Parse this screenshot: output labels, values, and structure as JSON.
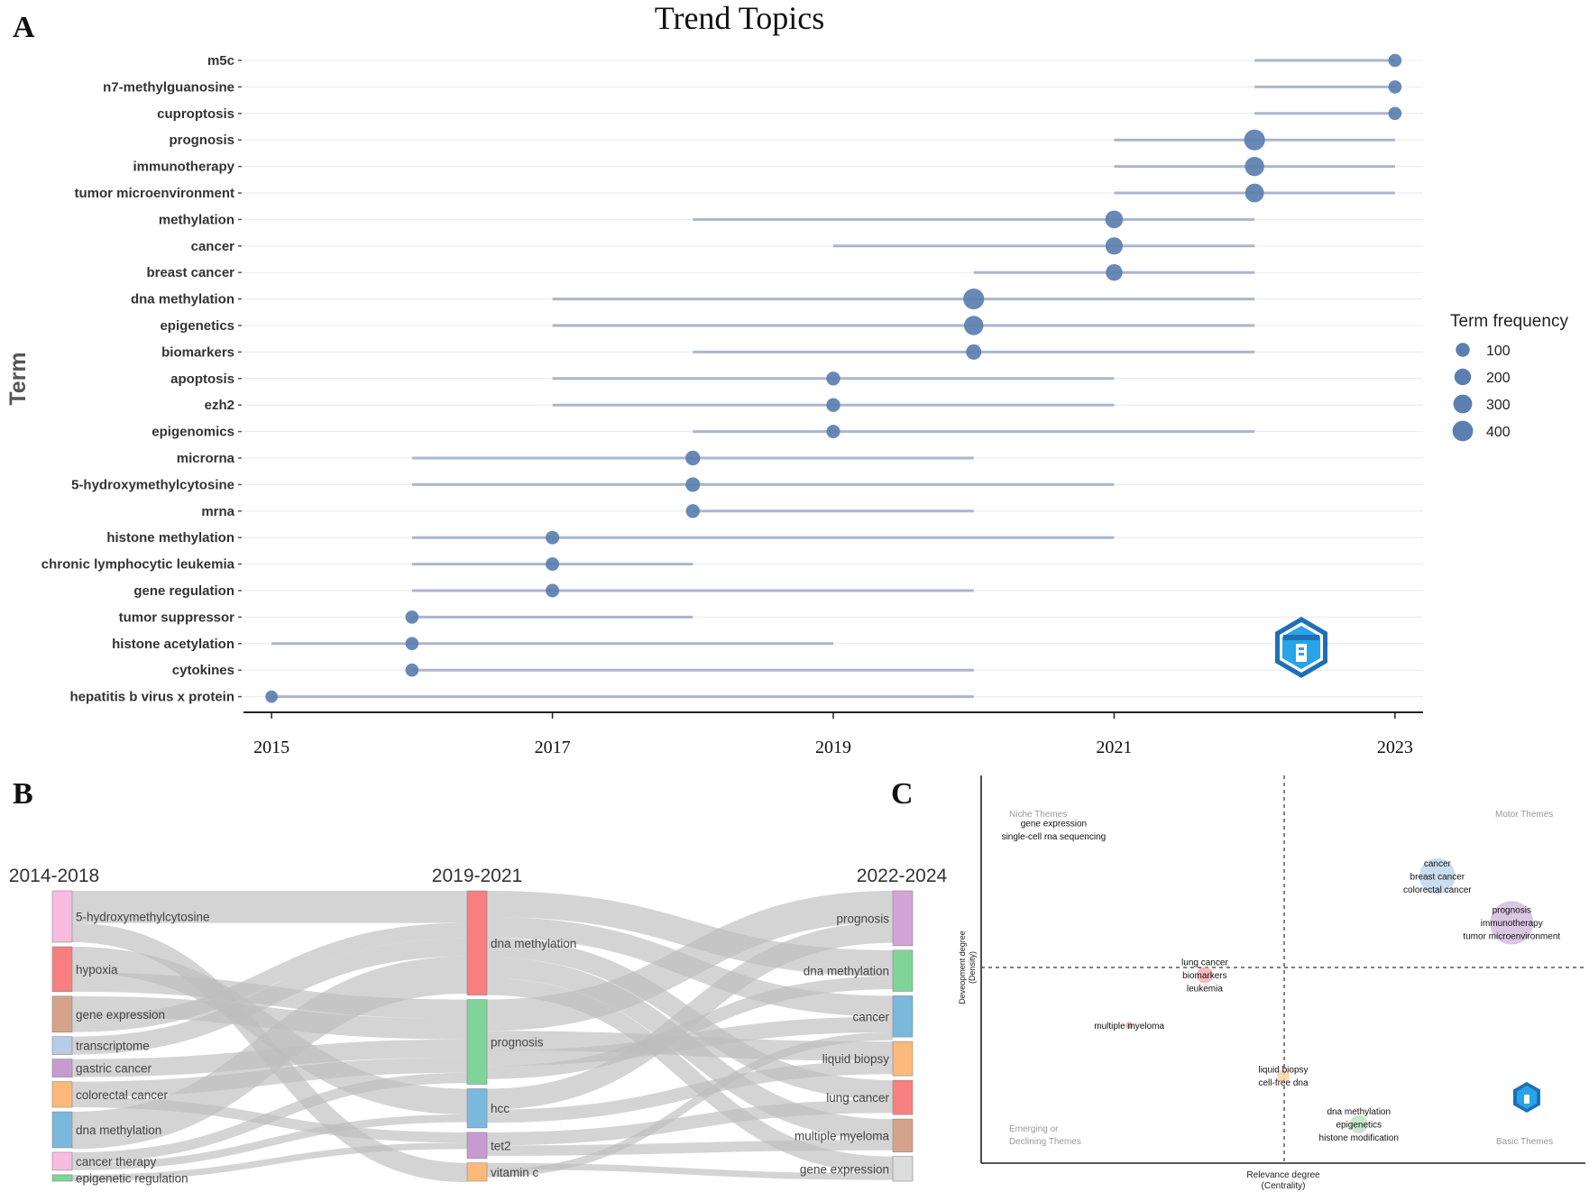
{
  "panels": {
    "a": "A",
    "b": "B",
    "c": "C"
  },
  "colors": {
    "dot": "#5b7fb0",
    "segment": "#aab6d0",
    "grid": "#e8e8e8",
    "flow": "#bdbdbd"
  },
  "chart_data": [
    {
      "type": "scatter",
      "title": "Trend Topics",
      "xlabel": "",
      "ylabel": "Term",
      "xlim": [
        2014.8,
        2023.2
      ],
      "xticks": [
        2015,
        2017,
        2019,
        2021,
        2023
      ],
      "legend": {
        "title": "Term frequency",
        "values": [
          100,
          200,
          300,
          400
        ]
      },
      "terms": [
        {
          "term": "m5c",
          "start": 2022,
          "end": 2023,
          "year": 2023,
          "freq": 80
        },
        {
          "term": "n7-methylguanosine",
          "start": 2022,
          "end": 2023,
          "year": 2023,
          "freq": 80
        },
        {
          "term": "cuproptosis",
          "start": 2022,
          "end": 2023,
          "year": 2023,
          "freq": 80
        },
        {
          "term": "prognosis",
          "start": 2021,
          "end": 2023,
          "year": 2022,
          "freq": 420
        },
        {
          "term": "immunotherapy",
          "start": 2021,
          "end": 2023,
          "year": 2022,
          "freq": 330
        },
        {
          "term": "tumor microenvironment",
          "start": 2021,
          "end": 2023,
          "year": 2022,
          "freq": 300
        },
        {
          "term": "methylation",
          "start": 2018,
          "end": 2022,
          "year": 2021,
          "freq": 250
        },
        {
          "term": "cancer",
          "start": 2019,
          "end": 2022,
          "year": 2021,
          "freq": 230
        },
        {
          "term": "breast cancer",
          "start": 2020,
          "end": 2022,
          "year": 2021,
          "freq": 200
        },
        {
          "term": "dna methylation",
          "start": 2017,
          "end": 2022,
          "year": 2020,
          "freq": 420
        },
        {
          "term": "epigenetics",
          "start": 2017,
          "end": 2022,
          "year": 2020,
          "freq": 330
        },
        {
          "term": "biomarkers",
          "start": 2018,
          "end": 2022,
          "year": 2020,
          "freq": 150
        },
        {
          "term": "apoptosis",
          "start": 2017,
          "end": 2021,
          "year": 2019,
          "freq": 100
        },
        {
          "term": "ezh2",
          "start": 2017,
          "end": 2021,
          "year": 2019,
          "freq": 100
        },
        {
          "term": "epigenomics",
          "start": 2018,
          "end": 2022,
          "year": 2019,
          "freq": 90
        },
        {
          "term": "microrna",
          "start": 2016,
          "end": 2020,
          "year": 2018,
          "freq": 130
        },
        {
          "term": "5-hydroxymethylcytosine",
          "start": 2016,
          "end": 2021,
          "year": 2018,
          "freq": 120
        },
        {
          "term": "mrna",
          "start": 2018,
          "end": 2020,
          "year": 2018,
          "freq": 100
        },
        {
          "term": "histone methylation",
          "start": 2016,
          "end": 2021,
          "year": 2017,
          "freq": 90
        },
        {
          "term": "chronic lymphocytic leukemia",
          "start": 2016,
          "end": 2018,
          "year": 2017,
          "freq": 90
        },
        {
          "term": "gene regulation",
          "start": 2016,
          "end": 2020,
          "year": 2017,
          "freq": 90
        },
        {
          "term": "tumor suppressor",
          "start": 2016,
          "end": 2018,
          "year": 2016,
          "freq": 80
        },
        {
          "term": "histone acetylation",
          "start": 2015,
          "end": 2019,
          "year": 2016,
          "freq": 80
        },
        {
          "term": "cytokines",
          "start": 2016,
          "end": 2020,
          "year": 2016,
          "freq": 80
        },
        {
          "term": "hepatitis b virus x protein",
          "start": 2015,
          "end": 2020,
          "year": 2015,
          "freq": 60
        }
      ]
    },
    {
      "type": "sankey",
      "title": "",
      "periods": [
        "2014-2018",
        "2019-2021",
        "2022-2024"
      ],
      "columns": [
        [
          {
            "label": "5-hydroxymethylcytosine",
            "weight": 4,
            "color": "#f7bce0"
          },
          {
            "label": "hypoxia",
            "weight": 3.5,
            "color": "#f77f7f"
          },
          {
            "label": "gene expression",
            "weight": 2.8,
            "color": "#d4a38a"
          },
          {
            "label": "transcriptome",
            "weight": 1.4,
            "color": "#b9cbe6"
          },
          {
            "label": "gastric cancer",
            "weight": 1.4,
            "color": "#c79bd0"
          },
          {
            "label": "colorectal cancer",
            "weight": 2.0,
            "color": "#fdb97a"
          },
          {
            "label": "dna methylation",
            "weight": 2.8,
            "color": "#7ab8dc"
          },
          {
            "label": "cancer therapy",
            "weight": 1.4,
            "color": "#f7bce0"
          },
          {
            "label": "epigenetic regulation",
            "weight": 0.5,
            "color": "#7fd49a"
          }
        ],
        [
          {
            "label": "dna methylation",
            "weight": 8,
            "color": "#f77f7f"
          },
          {
            "label": "prognosis",
            "weight": 6.5,
            "color": "#7fd49a"
          },
          {
            "label": "hcc",
            "weight": 3,
            "color": "#7ab8dc"
          },
          {
            "label": "tet2",
            "weight": 2,
            "color": "#c79bd0"
          },
          {
            "label": "vitamin c",
            "weight": 1.4,
            "color": "#fdb97a"
          }
        ],
        [
          {
            "label": "prognosis",
            "weight": 4,
            "color": "#d3a5d6"
          },
          {
            "label": "dna methylation",
            "weight": 3,
            "color": "#7fd49a"
          },
          {
            "label": "cancer",
            "weight": 3,
            "color": "#7ab8dc"
          },
          {
            "label": "liquid biopsy",
            "weight": 2.5,
            "color": "#fdb97a"
          },
          {
            "label": "lung cancer",
            "weight": 2.5,
            "color": "#f77f7f"
          },
          {
            "label": "multiple myeloma",
            "weight": 2.4,
            "color": "#d4a38a"
          },
          {
            "label": "gene expression",
            "weight": 1.8,
            "color": "#dcdcdc"
          }
        ]
      ],
      "flows": [
        {
          "from": [
            0,
            0
          ],
          "to": [
            1,
            0
          ],
          "value": 2.5
        },
        {
          "from": [
            0,
            0
          ],
          "to": [
            1,
            4
          ],
          "value": 1.5
        },
        {
          "from": [
            0,
            1
          ],
          "to": [
            1,
            2
          ],
          "value": 2
        },
        {
          "from": [
            0,
            1
          ],
          "to": [
            1,
            1
          ],
          "value": 1.5
        },
        {
          "from": [
            0,
            2
          ],
          "to": [
            1,
            1
          ],
          "value": 1.6
        },
        {
          "from": [
            0,
            2
          ],
          "to": [
            1,
            0
          ],
          "value": 1.2
        },
        {
          "from": [
            0,
            3
          ],
          "to": [
            1,
            0
          ],
          "value": 1.4
        },
        {
          "from": [
            0,
            4
          ],
          "to": [
            1,
            1
          ],
          "value": 1.4
        },
        {
          "from": [
            0,
            5
          ],
          "to": [
            1,
            1
          ],
          "value": 1.2
        },
        {
          "from": [
            0,
            5
          ],
          "to": [
            1,
            3
          ],
          "value": 0.8
        },
        {
          "from": [
            0,
            6
          ],
          "to": [
            1,
            0
          ],
          "value": 2.9
        },
        {
          "from": [
            0,
            7
          ],
          "to": [
            1,
            1
          ],
          "value": 0.8
        },
        {
          "from": [
            0,
            7
          ],
          "to": [
            1,
            2
          ],
          "value": 0.6
        },
        {
          "from": [
            0,
            8
          ],
          "to": [
            1,
            3
          ],
          "value": 0.5
        },
        {
          "from": [
            1,
            0
          ],
          "to": [
            2,
            1
          ],
          "value": 2.0
        },
        {
          "from": [
            1,
            0
          ],
          "to": [
            2,
            2
          ],
          "value": 1.6
        },
        {
          "from": [
            1,
            0
          ],
          "to": [
            2,
            4
          ],
          "value": 1.5
        },
        {
          "from": [
            1,
            0
          ],
          "to": [
            2,
            5
          ],
          "value": 1.6
        },
        {
          "from": [
            1,
            0
          ],
          "to": [
            2,
            6
          ],
          "value": 1.3
        },
        {
          "from": [
            1,
            1
          ],
          "to": [
            2,
            0
          ],
          "value": 2.4
        },
        {
          "from": [
            1,
            1
          ],
          "to": [
            2,
            3
          ],
          "value": 1.5
        },
        {
          "from": [
            1,
            1
          ],
          "to": [
            2,
            2
          ],
          "value": 1.2
        },
        {
          "from": [
            1,
            1
          ],
          "to": [
            2,
            1
          ],
          "value": 1.0
        },
        {
          "from": [
            1,
            2
          ],
          "to": [
            2,
            0
          ],
          "value": 1.6
        },
        {
          "from": [
            1,
            2
          ],
          "to": [
            2,
            3
          ],
          "value": 1.0
        },
        {
          "from": [
            1,
            3
          ],
          "to": [
            2,
            4
          ],
          "value": 1.0
        },
        {
          "from": [
            1,
            3
          ],
          "to": [
            2,
            5
          ],
          "value": 0.8
        },
        {
          "from": [
            1,
            4
          ],
          "to": [
            2,
            6
          ],
          "value": 0.5
        },
        {
          "from": [
            1,
            4
          ],
          "to": [
            2,
            2
          ],
          "value": 0.6
        }
      ]
    },
    {
      "type": "scatter",
      "title": "",
      "xlabel": "Relevance degree\n(Centrality)",
      "ylabel": "Deveopment degree\n(Density)",
      "xlabel_lines": [
        "Relevance degree",
        "(Centrality)"
      ],
      "ylabel_lines": [
        "Deveopment degree",
        "(Density)"
      ],
      "quadrants": {
        "top_left": "Niche Themes",
        "top_right": "Motor Themes",
        "bottom_left": [
          "Emerging or",
          "Declining Themes"
        ],
        "bottom_right": "Basic Themes"
      },
      "xlim": [
        0,
        1
      ],
      "ylim": [
        0,
        1
      ],
      "divider": [
        0.5,
        0.5
      ],
      "clusters": [
        {
          "labels": [
            "gene expression",
            "single-cell rna sequencing"
          ],
          "x": 0.12,
          "y": 0.86,
          "size": 0,
          "color": "#ffffff"
        },
        {
          "labels": [
            "cancer",
            "breast cancer",
            "colorectal cancer"
          ],
          "x": 0.755,
          "y": 0.74,
          "size": 20,
          "color": "#b8d1ea"
        },
        {
          "labels": [
            "prognosis",
            "immunotherapy",
            "tumor microenvironment"
          ],
          "x": 0.878,
          "y": 0.62,
          "size": 24,
          "color": "#cfb3d9"
        },
        {
          "labels": [
            "lung cancer",
            "biomarkers",
            "leukemia"
          ],
          "x": 0.37,
          "y": 0.485,
          "size": 9,
          "color": "#f5a4a4"
        },
        {
          "labels": [
            "multiple myeloma"
          ],
          "x": 0.245,
          "y": 0.355,
          "size": 4,
          "color": "#d4a38a"
        },
        {
          "labels": [
            "liquid biopsy",
            "cell-free dna"
          ],
          "x": 0.5,
          "y": 0.225,
          "size": 7,
          "color": "#fdcf9a"
        },
        {
          "labels": [
            "dna methylation",
            "epigenetics",
            "histone modification"
          ],
          "x": 0.625,
          "y": 0.1,
          "size": 10,
          "color": "#b6e0b9"
        }
      ]
    }
  ]
}
